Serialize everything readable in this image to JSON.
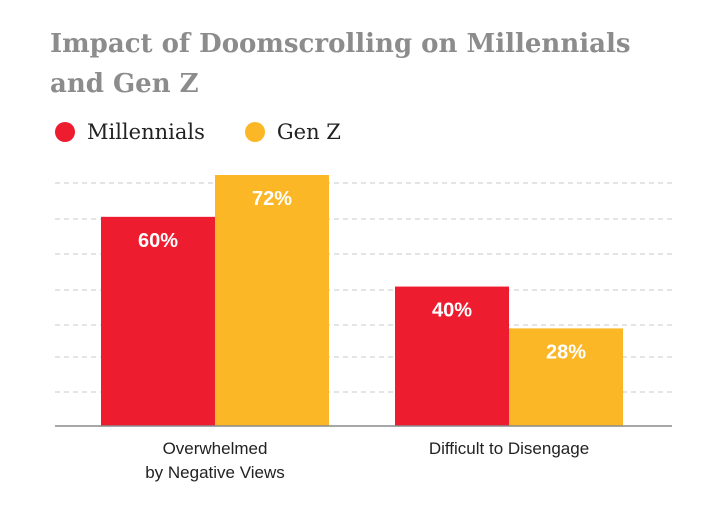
{
  "chart_data": {
    "type": "bar",
    "title": "Impact of Doomscrolling on Millennials and Gen Z",
    "categories": [
      "Overwhelmed\nby Negative Views",
      "Difficult to Disengage"
    ],
    "series": [
      {
        "name": "Millennials",
        "color": "#ed1c2e",
        "values": [
          60,
          40
        ],
        "labels": [
          "60%",
          "40%"
        ]
      },
      {
        "name": "Gen Z",
        "color": "#fbb726",
        "values": [
          72,
          28
        ],
        "labels": [
          "72%",
          "28%"
        ]
      }
    ],
    "ylim": [
      0,
      72
    ],
    "grid": true,
    "legend": "top-left",
    "xlabel": "",
    "ylabel": ""
  }
}
